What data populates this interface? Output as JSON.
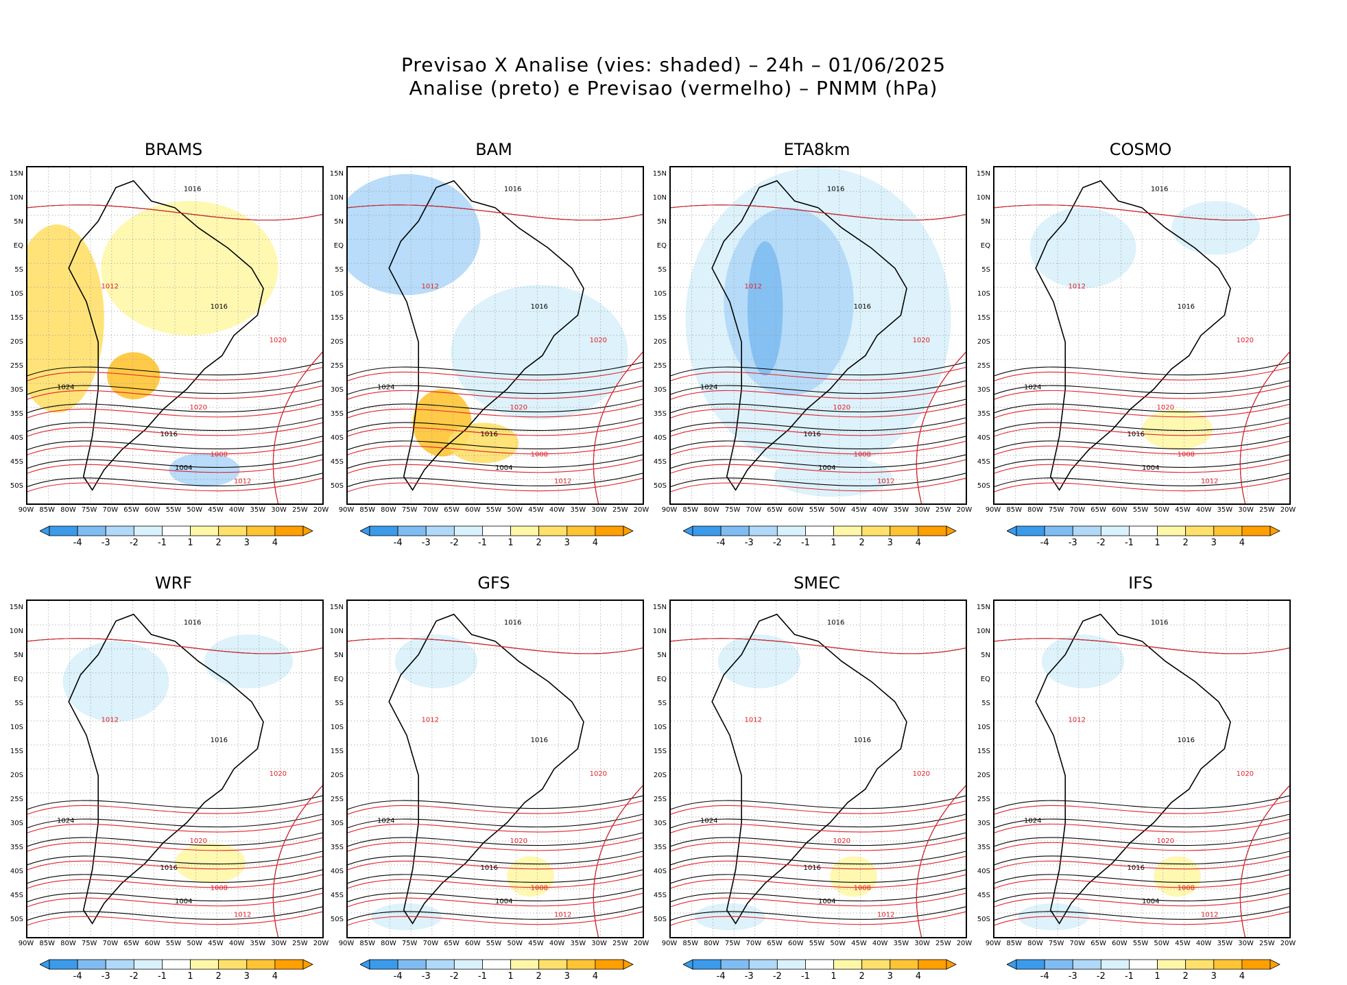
{
  "header": {
    "line1": "Previsao X Analise (vies: shaded) – 24h – 01/06/2025",
    "line2": "Analise (preto) e Previsao (vermelho) – PNMM (hPa)"
  },
  "lat_ticks": [
    "15N",
    "10N",
    "5N",
    "EQ",
    "5S",
    "10S",
    "15S",
    "20S",
    "25S",
    "30S",
    "35S",
    "40S",
    "45S",
    "50S"
  ],
  "lon_ticks": [
    "90W",
    "85W",
    "80W",
    "75W",
    "70W",
    "65W",
    "60W",
    "55W",
    "50W",
    "45W",
    "40W",
    "35W",
    "30W",
    "25W",
    "20W"
  ],
  "colorbar": {
    "labels": [
      "-4",
      "-3",
      "-2",
      "-1",
      "1",
      "2",
      "3",
      "4"
    ],
    "colors": [
      "#3b9bea",
      "#7fbcf2",
      "#b0d8f8",
      "#d9f1fb",
      "#ffffff",
      "#fff7a8",
      "#ffe06a",
      "#ffc433",
      "#ff9f00",
      "#ff9f00"
    ]
  },
  "colors": {
    "analysis": "#000000",
    "forecast": "#e2202a",
    "blue_bias": "#a9dbf5",
    "yellow_bias": "#ffd54a"
  },
  "panels": [
    {
      "name": "BRAMS",
      "bias": "warm",
      "labels": [
        "1016",
        "1012",
        "1016",
        "1020",
        "1024",
        "1020",
        "1016",
        "1008",
        "1004",
        "1012"
      ]
    },
    {
      "name": "BAM",
      "bias": "mixed",
      "labels": [
        "1016",
        "1012",
        "1016",
        "1020",
        "1024",
        "1020",
        "1016",
        "1008",
        "1004",
        "1012"
      ]
    },
    {
      "name": "ETA8km",
      "bias": "cold",
      "labels": [
        "1016",
        "1012",
        "1016",
        "1020",
        "1024",
        "1020",
        "1016",
        "1008",
        "1004",
        "1012"
      ]
    },
    {
      "name": "COSMO",
      "bias": "cold-light",
      "labels": [
        "1016",
        "1012",
        "1016",
        "1020",
        "1024",
        "1020",
        "1016",
        "1008",
        "1004",
        "1012"
      ]
    },
    {
      "name": "WRF",
      "bias": "cold-light",
      "labels": [
        "1016",
        "1012",
        "1016",
        "1020",
        "1024",
        "1020",
        "1016",
        "1008",
        "1004",
        "1012"
      ]
    },
    {
      "name": "GFS",
      "bias": "neutral",
      "labels": [
        "1016",
        "1012",
        "1016",
        "1020",
        "1024",
        "1020",
        "1016",
        "1008",
        "1004",
        "1012"
      ]
    },
    {
      "name": "SMEC",
      "bias": "neutral",
      "labels": [
        "1016",
        "1012",
        "1016",
        "1020",
        "1024",
        "1020",
        "1016",
        "1008",
        "1004",
        "1012"
      ]
    },
    {
      "name": "IFS",
      "bias": "neutral",
      "labels": [
        "1016",
        "1012",
        "1016",
        "1020",
        "1024",
        "1020",
        "1016",
        "1008",
        "1004",
        "1012"
      ]
    }
  ]
}
